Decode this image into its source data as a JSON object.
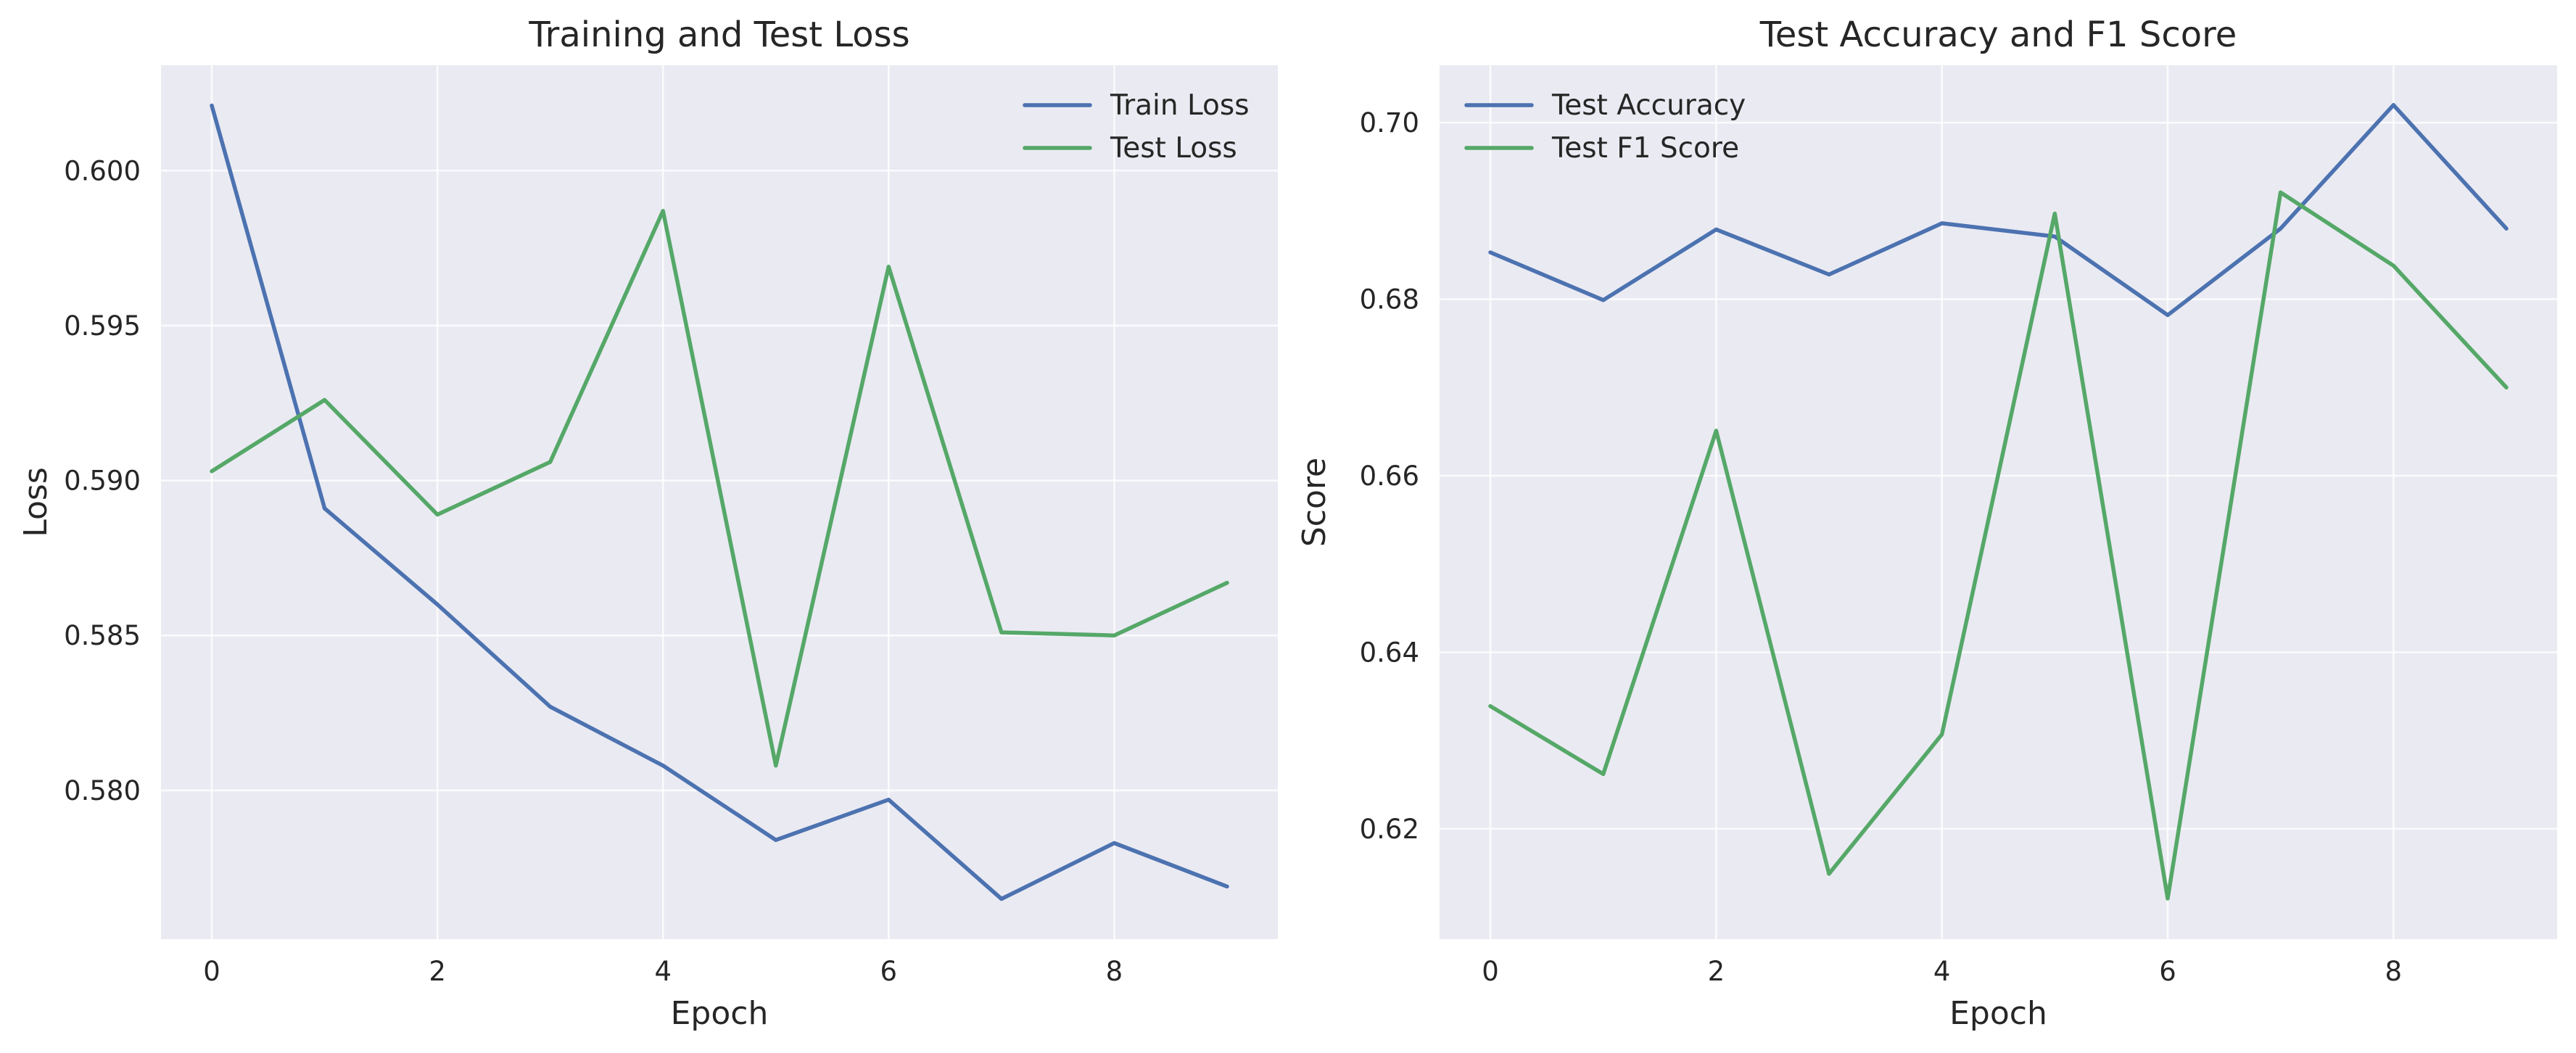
{
  "chart_data": [
    {
      "type": "line",
      "title": "Training and Test Loss",
      "xlabel": "Epoch",
      "ylabel": "Loss",
      "x": [
        0,
        1,
        2,
        3,
        4,
        5,
        6,
        7,
        8,
        9
      ],
      "xlim": [
        -0.45,
        9.45
      ],
      "ylim": [
        0.5752,
        0.6034
      ],
      "xticks": [
        0,
        2,
        4,
        6,
        8
      ],
      "yticks": [
        0.58,
        0.585,
        0.59,
        0.595,
        0.6
      ],
      "ytick_labels": [
        "0.580",
        "0.585",
        "0.590",
        "0.595",
        "0.600"
      ],
      "grid": true,
      "legend_position": "top-right",
      "series": [
        {
          "name": "Train Loss",
          "color": "#4c72b0",
          "values": [
            0.6021,
            0.5891,
            0.586,
            0.5827,
            0.5808,
            0.5784,
            0.5797,
            0.5765,
            0.5783,
            0.5769
          ]
        },
        {
          "name": "Test Loss",
          "color": "#55a868",
          "values": [
            0.5903,
            0.5926,
            0.5889,
            0.5906,
            0.5987,
            0.5808,
            0.5969,
            0.5851,
            0.585,
            0.5867
          ]
        }
      ]
    },
    {
      "type": "line",
      "title": "Test Accuracy and F1 Score",
      "xlabel": "Epoch",
      "ylabel": "Score",
      "x": [
        0,
        1,
        2,
        3,
        4,
        5,
        6,
        7,
        8,
        9
      ],
      "xlim": [
        -0.45,
        9.45
      ],
      "ylim": [
        0.6075,
        0.7065
      ],
      "xticks": [
        0,
        2,
        4,
        6,
        8
      ],
      "yticks": [
        0.62,
        0.64,
        0.66,
        0.68,
        0.7
      ],
      "ytick_labels": [
        "0.62",
        "0.64",
        "0.66",
        "0.68",
        "0.70"
      ],
      "grid": true,
      "legend_position": "top-left",
      "series": [
        {
          "name": "Test Accuracy",
          "color": "#4c72b0",
          "values": [
            0.6853,
            0.6799,
            0.6879,
            0.6828,
            0.6886,
            0.6871,
            0.6782,
            0.688,
            0.702,
            0.688
          ]
        },
        {
          "name": "Test F1 Score",
          "color": "#55a868",
          "values": [
            0.6339,
            0.6262,
            0.6651,
            0.6149,
            0.6307,
            0.6897,
            0.6121,
            0.6921,
            0.6838,
            0.67
          ]
        }
      ]
    }
  ]
}
